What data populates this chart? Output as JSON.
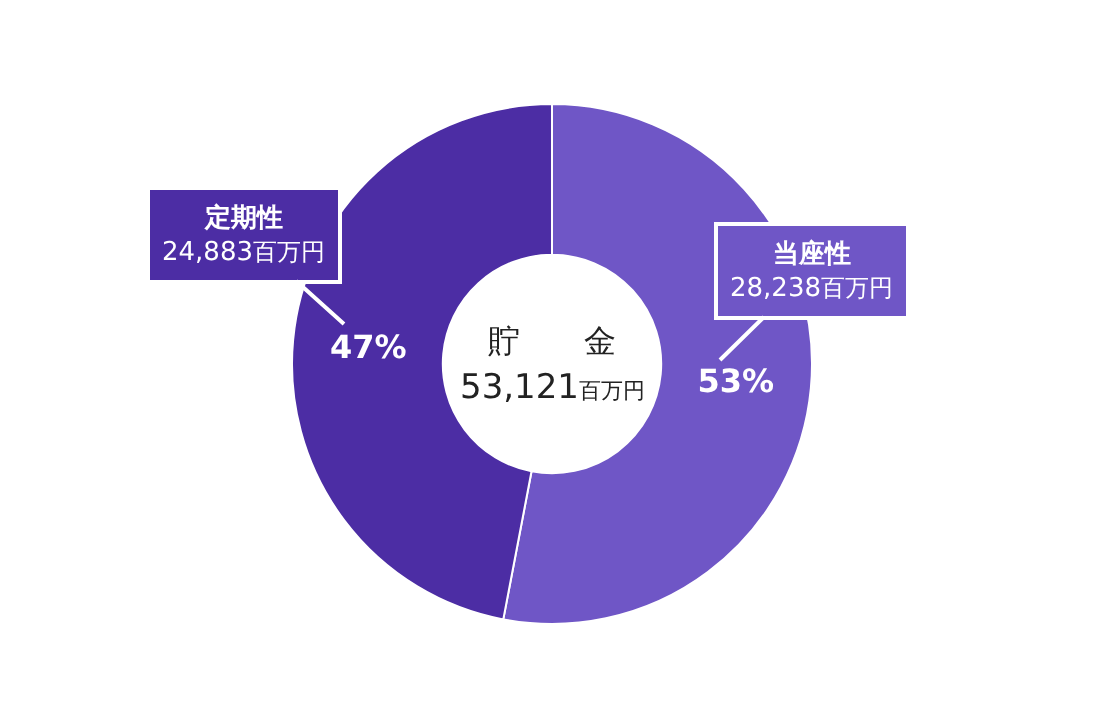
{
  "chart_data": {
    "type": "donut",
    "title": "貯　　金",
    "subtitle": "53,121百万円",
    "categories": [
      "当座性",
      "定期性"
    ],
    "values": [
      53,
      47
    ],
    "colors": [
      "#6f56c6",
      "#4c2da4"
    ],
    "value_labels": [
      "53%",
      "47%"
    ],
    "annotations": [
      "28,238百万円",
      "24,883百万円"
    ],
    "legend": false
  }
}
